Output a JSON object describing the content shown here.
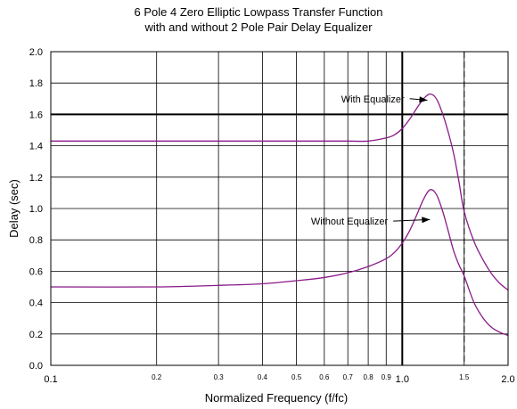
{
  "chart_data": {
    "type": "line",
    "title": [
      "6 Pole 4 Zero Elliptic Lowpass Transfer Function",
      "with and without 2 Pole Pair Delay Equalizer"
    ],
    "xlabel": "Normalized Frequency (f/fc)",
    "ylabel": "Delay (sec)",
    "xscale": "log",
    "xlim": [
      0.1,
      2.0
    ],
    "ylim": [
      0.0,
      2.0
    ],
    "x_ticks": [
      {
        "value": 0.1,
        "label": "0.1"
      },
      {
        "value": 0.2,
        "label": "0.2"
      },
      {
        "value": 0.3,
        "label": "0.3"
      },
      {
        "value": 0.4,
        "label": "0.4"
      },
      {
        "value": 0.5,
        "label": "0.5"
      },
      {
        "value": 0.6,
        "label": "0.6"
      },
      {
        "value": 0.7,
        "label": "0.7"
      },
      {
        "value": 0.8,
        "label": "0.8"
      },
      {
        "value": 0.9,
        "label": "0.9"
      },
      {
        "value": 1.0,
        "label": "1.0"
      },
      {
        "value": 1.5,
        "label": "1.5"
      },
      {
        "value": 2.0,
        "label": "2.0"
      }
    ],
    "y_ticks": [
      {
        "value": 0.0,
        "label": "0.0"
      },
      {
        "value": 0.2,
        "label": "0.2"
      },
      {
        "value": 0.4,
        "label": "0.4"
      },
      {
        "value": 0.6,
        "label": "0.6"
      },
      {
        "value": 0.8,
        "label": "0.8"
      },
      {
        "value": 1.0,
        "label": "1.0"
      },
      {
        "value": 1.2,
        "label": "1.2"
      },
      {
        "value": 1.4,
        "label": "1.4"
      },
      {
        "value": 1.6,
        "label": "1.6"
      },
      {
        "value": 1.8,
        "label": "1.8"
      },
      {
        "value": 2.0,
        "label": "2.0"
      }
    ],
    "grid": true,
    "reference_lines": [
      {
        "axis": "y",
        "value": 1.6,
        "style": "solid-bold"
      },
      {
        "axis": "x",
        "value": 1.0,
        "style": "solid-bold"
      },
      {
        "axis": "x",
        "value": 1.5,
        "style": "dashed"
      }
    ],
    "line_color": "#8a1a8a",
    "series": [
      {
        "key": "with",
        "x": [
          0.1,
          0.2,
          0.3,
          0.4,
          0.5,
          0.6,
          0.7,
          0.8,
          0.9,
          0.95,
          1.0,
          1.05,
          1.1,
          1.15,
          1.2,
          1.25,
          1.3,
          1.35,
          1.4,
          1.45,
          1.5,
          1.6,
          1.7,
          1.8,
          1.9,
          2.0
        ],
        "y": [
          1.43,
          1.43,
          1.43,
          1.43,
          1.43,
          1.43,
          1.43,
          1.43,
          1.45,
          1.47,
          1.51,
          1.57,
          1.64,
          1.7,
          1.73,
          1.7,
          1.61,
          1.49,
          1.35,
          1.17,
          0.98,
          0.79,
          0.67,
          0.58,
          0.52,
          0.48
        ]
      },
      {
        "key": "without",
        "x": [
          0.1,
          0.2,
          0.3,
          0.4,
          0.5,
          0.6,
          0.7,
          0.8,
          0.9,
          0.95,
          1.0,
          1.05,
          1.1,
          1.15,
          1.2,
          1.25,
          1.3,
          1.35,
          1.4,
          1.45,
          1.5,
          1.6,
          1.7,
          1.8,
          1.9,
          2.0
        ],
        "y": [
          0.5,
          0.5,
          0.51,
          0.52,
          0.54,
          0.56,
          0.59,
          0.63,
          0.68,
          0.72,
          0.78,
          0.86,
          0.96,
          1.06,
          1.12,
          1.09,
          0.99,
          0.86,
          0.73,
          0.64,
          0.57,
          0.4,
          0.3,
          0.24,
          0.21,
          0.19
        ]
      }
    ],
    "annotations": [
      {
        "text": "With Equalizer",
        "x": 0.67,
        "y": 1.7,
        "arrow_to": [
          1.2,
          1.69
        ]
      },
      {
        "text": "Without Equalizer",
        "x": 0.55,
        "y": 0.92,
        "arrow_to": [
          1.22,
          0.93
        ]
      }
    ]
  }
}
